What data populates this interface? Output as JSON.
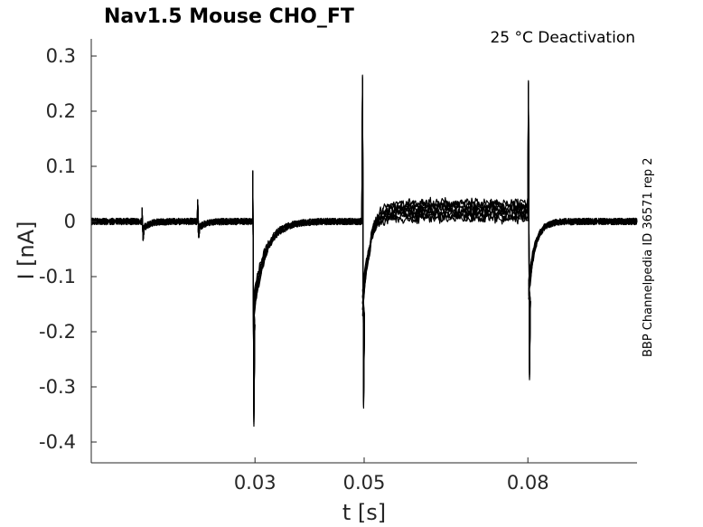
{
  "chart_data": {
    "type": "line",
    "title": "Nav1.5  Mouse  CHO_FT",
    "annotation": "25 °C  Deactivation",
    "side_label": "BBP Channelpedia ID 36571 rep 2",
    "xlabel": "t [s]",
    "ylabel": "I [nA]",
    "xlim": [
      0.0,
      0.1
    ],
    "ylim": [
      -0.44,
      0.33
    ],
    "x_ticks": [
      0.03,
      0.05,
      0.08
    ],
    "x_tick_labels": [
      "0.03",
      "0.05",
      "0.08"
    ],
    "y_ticks": [
      0.3,
      0.2,
      0.1,
      0,
      -0.1,
      -0.2,
      -0.3,
      -0.4
    ],
    "y_tick_labels": [
      "0.3",
      "0.2",
      "0.1",
      "0",
      "-0.1",
      "-0.2",
      "-0.3",
      "-0.4"
    ],
    "grid": false,
    "series_color": "#000000",
    "trace_count": 8,
    "events": [
      {
        "t": 0.0093,
        "peak_pos": 0.025,
        "peak_neg": -0.035
      },
      {
        "t": 0.0195,
        "peak_pos": 0.04,
        "peak_neg": -0.03
      },
      {
        "t": 0.0296,
        "peak_pos": 0.093,
        "peak_neg": -0.375
      },
      {
        "t": 0.0497,
        "peak_pos": 0.268,
        "peak_neg": -0.342
      },
      {
        "t": 0.0801,
        "peak_pos": 0.258,
        "peak_neg": -0.29
      }
    ],
    "plateau": {
      "t_start": 0.0497,
      "t_end": 0.0801,
      "levels": [
        0.005,
        0.01,
        0.014,
        0.018,
        0.022,
        0.026,
        0.03,
        0.034
      ]
    }
  }
}
